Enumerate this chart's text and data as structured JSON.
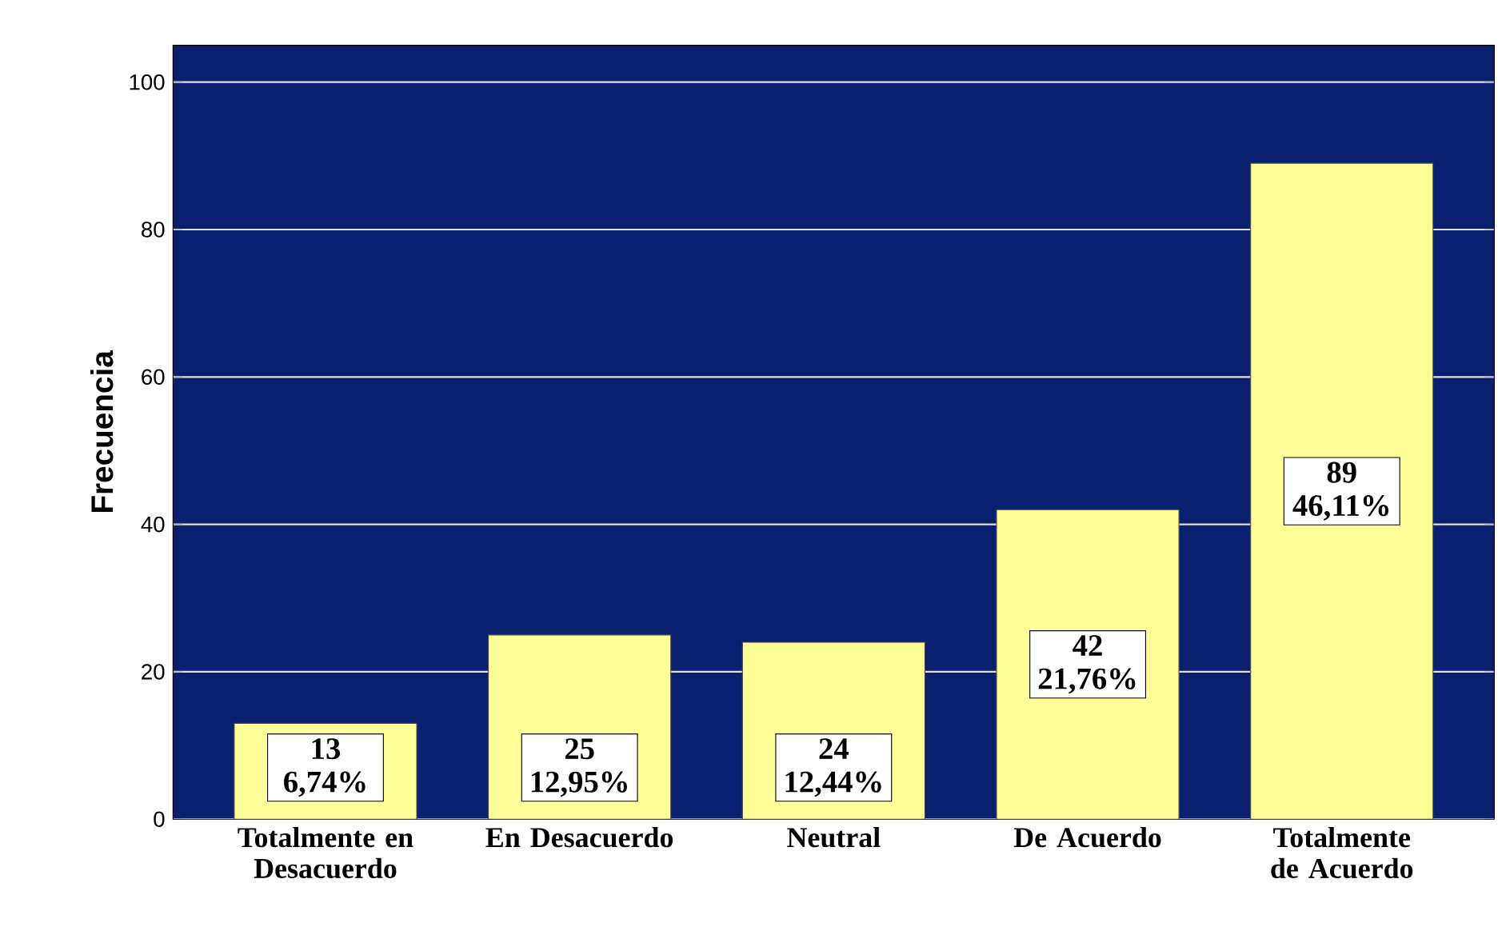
{
  "chart_data": {
    "type": "bar",
    "ylabel": "Frecuencia",
    "categories": [
      "Totalmente en Desacuerdo",
      "En Desacuerdo",
      "Neutral",
      "De Acuerdo",
      "Totalmente de Acuerdo"
    ],
    "values": [
      13,
      25,
      24,
      42,
      89
    ],
    "value_labels": [
      "13 6,74%",
      "25 12,95%",
      "24 12,44%",
      "42 21,76%",
      "89 46,11%"
    ],
    "color": "#ffff99",
    "ylim": [
      0,
      105
    ],
    "yticks": [
      0,
      20,
      40,
      60,
      80,
      100
    ],
    "grid": "y"
  }
}
